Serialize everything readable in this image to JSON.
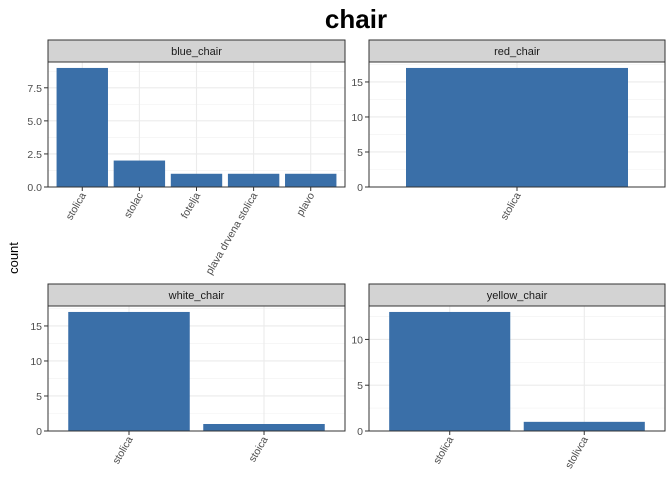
{
  "chart_data": {
    "type": "bar",
    "title": "chair",
    "ylabel": "count",
    "xlabel": "",
    "bar_color": "#3a6fa8",
    "strip_color": "#d3d3d3",
    "grid": true,
    "panels": [
      {
        "name": "blue_chair",
        "categories": [
          "stolica",
          "stolac",
          "fotelja",
          "plava drvena stolica",
          "plavo"
        ],
        "values": [
          9,
          2,
          1,
          1,
          1
        ],
        "ylim": [
          0,
          9.45
        ],
        "yticks": [
          0,
          2.5,
          5,
          7.5
        ],
        "ytick_labels": [
          "0.0",
          "2.5",
          "5.0",
          "7.5"
        ]
      },
      {
        "name": "red_chair",
        "categories": [
          "stolica"
        ],
        "values": [
          17
        ],
        "ylim": [
          0,
          17.85
        ],
        "yticks": [
          0,
          5,
          10,
          15
        ],
        "ytick_labels": [
          "0",
          "5",
          "10",
          "15"
        ]
      },
      {
        "name": "white_chair",
        "categories": [
          "stolica",
          "stoica"
        ],
        "values": [
          17,
          1
        ],
        "ylim": [
          0,
          17.85
        ],
        "yticks": [
          0,
          5,
          10,
          15
        ],
        "ytick_labels": [
          "0",
          "5",
          "10",
          "15"
        ]
      },
      {
        "name": "yellow_chair",
        "categories": [
          "stolica",
          "stolivca"
        ],
        "values": [
          13,
          1
        ],
        "ylim": [
          0,
          13.65
        ],
        "yticks": [
          0,
          5,
          10
        ],
        "ytick_labels": [
          "0",
          "5",
          "10"
        ]
      }
    ]
  }
}
